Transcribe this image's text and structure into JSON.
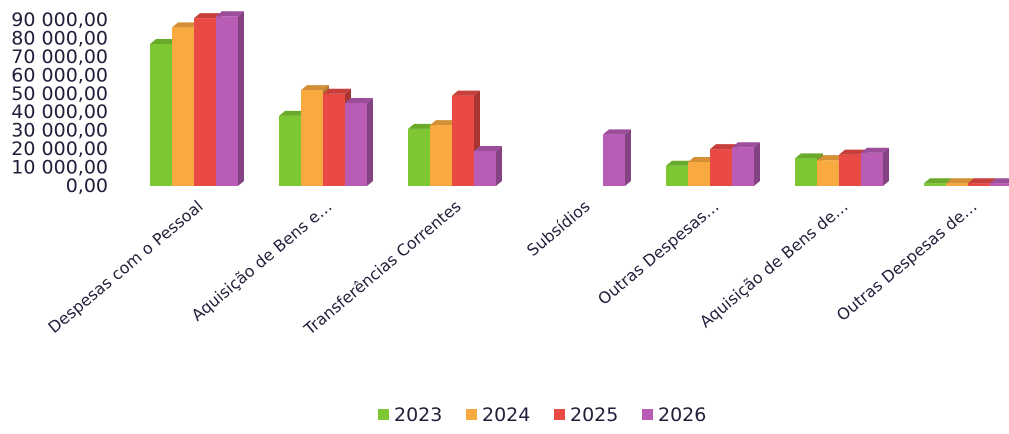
{
  "chart_data": {
    "type": "bar",
    "title": "",
    "xlabel": "",
    "ylabel": "",
    "ylim": [
      0,
      90000
    ],
    "yticks": [
      "0,00",
      "10 000,00",
      "20 000,00",
      "30 000,00",
      "40 000,00",
      "50 000,00",
      "60 000,00",
      "70 000,00",
      "80 000,00",
      "90 000,00"
    ],
    "categories": [
      "Despesas com o Pessoal",
      "Aquisição de Bens e…",
      "Transferências Correntes",
      "Subsídios",
      "Outras Despesas…",
      "Aquisição de Bens de…",
      "Outras Despesas de…"
    ],
    "series": [
      {
        "name": "2023",
        "color": "#7dc832",
        "values": [
          77000,
          38000,
          31000,
          0,
          11000,
          15000,
          1500
        ]
      },
      {
        "name": "2024",
        "color": "#f8a93f",
        "values": [
          86000,
          52000,
          33000,
          0,
          13000,
          14000,
          1500
        ]
      },
      {
        "name": "2025",
        "color": "#ea4a44",
        "values": [
          91000,
          50000,
          49000,
          0,
          20000,
          17000,
          1500
        ]
      },
      {
        "name": "2026",
        "color": "#b85cb5",
        "values": [
          92000,
          45000,
          19000,
          28000,
          21000,
          18000,
          1500
        ]
      }
    ],
    "grid": false,
    "legend_position": "bottom"
  }
}
